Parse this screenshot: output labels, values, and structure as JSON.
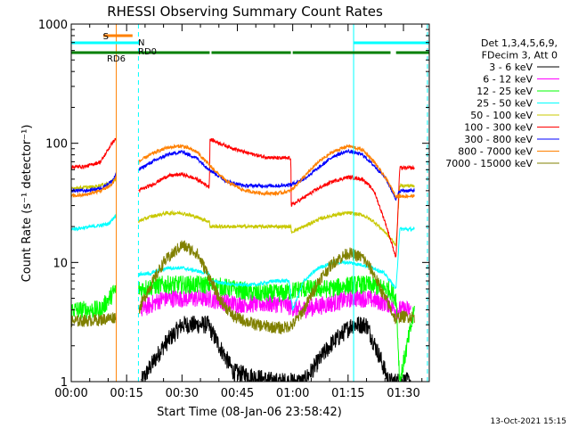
{
  "chart_data": {
    "type": "line",
    "title": "RHESSI Observing Summary Count Rates",
    "xlabel": "Start Time (08-Jan-06 23:58:42)",
    "ylabel": "Count Rate (s⁻¹ detector⁻¹)",
    "yscale": "log",
    "ylim": [
      1,
      1000
    ],
    "xlim_minutes": [
      0,
      97
    ],
    "x_ticks": [
      "00:00",
      "00:15",
      "00:30",
      "00:45",
      "01:00",
      "01:15",
      "01:30"
    ],
    "x_tick_minutes": [
      0,
      15,
      30,
      45,
      60,
      75,
      90
    ],
    "y_ticks": [
      "1",
      "10",
      "100",
      "1000"
    ],
    "y_tick_values": [
      1,
      10,
      100,
      1000
    ],
    "footer_date": "13-Oct-2021 15:15",
    "legend": {
      "header": [
        "Det 1,3,4,5,6,9,",
        "FDecim 3, Att 0"
      ],
      "placement": "right"
    },
    "flags": [
      {
        "label": "S",
        "color": "#ff8000",
        "segments": [
          [
            8.7,
            16.6
          ]
        ]
      },
      {
        "label": "N",
        "color": "#00ffff",
        "segments": [
          [
            0,
            18.2
          ],
          [
            76.5,
            97
          ]
        ]
      },
      {
        "label": "RD0",
        "color": "#008000",
        "segments": [
          [
            0,
            37.5
          ],
          [
            38.0,
            59.5
          ],
          [
            60.0,
            86.5
          ],
          [
            88.0,
            97
          ]
        ]
      }
    ],
    "flag_extra_labels": [
      "RD6"
    ],
    "vlines": [
      {
        "x": 12.2,
        "color": "#ff8000",
        "style": "solid"
      },
      {
        "x": 18.2,
        "color": "#00ffff",
        "style": "dashed"
      },
      {
        "x": 76.5,
        "color": "#00ffff",
        "style": "solid"
      },
      {
        "x": 96.5,
        "color": "#00ffff",
        "style": "dashed"
      }
    ],
    "gaps": [
      [
        12.2,
        18.2
      ],
      [
        93.0,
        96.5
      ]
    ],
    "series": [
      {
        "name": "3 - 6 keV",
        "color": "#000000",
        "x": [
          19,
          25,
          30,
          37,
          44,
          55,
          63,
          70,
          76,
          80,
          84,
          86,
          88,
          92
        ],
        "y": [
          1,
          2,
          3,
          3,
          1.2,
          1,
          1,
          2,
          3,
          3,
          1.5,
          1,
          1,
          1
        ]
      },
      {
        "name": "6 - 12 keV",
        "color": "#ff00ff",
        "x": [
          19,
          22,
          25,
          30,
          37,
          44,
          50,
          57,
          62,
          70,
          76,
          80,
          86,
          88,
          92
        ],
        "y": [
          4,
          4.5,
          5,
          5,
          5,
          4.5,
          4.5,
          4.5,
          4,
          4.5,
          5,
          5,
          4.5,
          4,
          4
        ]
      },
      {
        "name": "12 - 25 keV",
        "color": "#00ff00",
        "x": [
          0,
          8,
          12.2,
          18.2,
          25,
          30,
          37,
          44,
          50,
          57,
          62,
          70,
          76,
          80,
          86,
          88,
          89,
          93,
          96.5
        ],
        "y": [
          4,
          4,
          6,
          6,
          6.5,
          6.5,
          6.5,
          6,
          5.5,
          5.5,
          6,
          6,
          6.5,
          6.5,
          6,
          5,
          1,
          4,
          4
        ]
      },
      {
        "name": "25 - 50 keV",
        "color": "#00ffff",
        "x": [
          0,
          6,
          10,
          12.2,
          18.2,
          21,
          26,
          30,
          34,
          37.4,
          37.6,
          44,
          50,
          55,
          59,
          60,
          63,
          67,
          71,
          75,
          79,
          82,
          85,
          88,
          89,
          93,
          96.5
        ],
        "y": [
          19,
          20,
          21,
          25,
          8,
          8,
          9,
          9,
          8.5,
          8,
          7,
          6.5,
          6.5,
          7,
          7,
          4,
          7,
          9,
          10,
          10,
          9.5,
          9,
          8,
          6,
          19,
          19,
          19
        ]
      },
      {
        "name": "50 - 100 keV",
        "color": "#c8c800",
        "x": [
          0,
          6,
          10,
          12.2,
          18.2,
          21,
          26,
          30,
          34,
          37.4,
          37.6,
          44,
          50,
          55,
          59.5,
          59.6,
          63,
          67,
          71,
          75,
          79,
          82,
          85,
          88,
          89,
          93,
          96.5
        ],
        "y": [
          42,
          43,
          46,
          50,
          22,
          24,
          26,
          26,
          24,
          22,
          20,
          20,
          20,
          20,
          20,
          18,
          20,
          23,
          25,
          26,
          25,
          22,
          18,
          14,
          44,
          44,
          44
        ]
      },
      {
        "name": "100 - 300 keV",
        "color": "#ff0000",
        "x": [
          0,
          4,
          8,
          11,
          12.2,
          18.2,
          22,
          26,
          30,
          34,
          37.4,
          37.6,
          42,
          47,
          52,
          56,
          59.5,
          59.6,
          63,
          67,
          71,
          75,
          79,
          82,
          85,
          88,
          89,
          93,
          96.5
        ],
        "y": [
          63,
          64,
          70,
          100,
          110,
          40,
          45,
          53,
          55,
          50,
          43,
          108,
          95,
          84,
          77,
          75,
          75,
          30,
          35,
          42,
          48,
          52,
          50,
          40,
          22,
          11,
          62,
          62,
          62
        ]
      },
      {
        "name": "300 - 800 keV",
        "color": "#0000ff",
        "x": [
          0,
          4,
          8,
          11,
          12.2,
          18.2,
          22,
          26,
          30,
          34,
          37.5,
          42,
          47,
          52,
          56,
          59.5,
          63,
          67,
          71,
          75,
          79,
          82,
          85,
          88,
          89,
          93,
          96.5
        ],
        "y": [
          40,
          40,
          42,
          48,
          55,
          60,
          70,
          80,
          85,
          75,
          60,
          48,
          44,
          44,
          44,
          45,
          50,
          62,
          78,
          86,
          80,
          65,
          52,
          34,
          40,
          40,
          40
        ]
      },
      {
        "name": "800 - 7000 keV",
        "color": "#ff8000",
        "x": [
          0,
          4,
          8,
          11,
          12.2,
          18.2,
          22,
          26,
          30,
          34,
          37.5,
          42,
          47,
          52,
          56,
          59.5,
          63,
          67,
          71,
          75,
          79,
          82,
          85,
          88,
          89,
          93,
          96.5
        ],
        "y": [
          36,
          37,
          40,
          45,
          52,
          70,
          82,
          92,
          95,
          85,
          65,
          48,
          40,
          38,
          38,
          40,
          52,
          70,
          85,
          95,
          88,
          70,
          52,
          36,
          36,
          36,
          36
        ]
      },
      {
        "name": "7000 - 15000 keV",
        "color": "#808000",
        "x": [
          0,
          8,
          12.2,
          18.2,
          21,
          25,
          30,
          34,
          37,
          40,
          44,
          50,
          57,
          60,
          63,
          67,
          71,
          75,
          79,
          82,
          85,
          88,
          89,
          93,
          96.5
        ],
        "y": [
          3.2,
          3.3,
          3.5,
          4,
          6,
          10,
          14,
          12,
          8,
          5,
          3.5,
          3,
          2.8,
          3,
          4,
          7,
          10,
          12,
          11,
          8,
          5,
          3.3,
          3.5,
          3.5,
          3.5
        ]
      }
    ]
  }
}
